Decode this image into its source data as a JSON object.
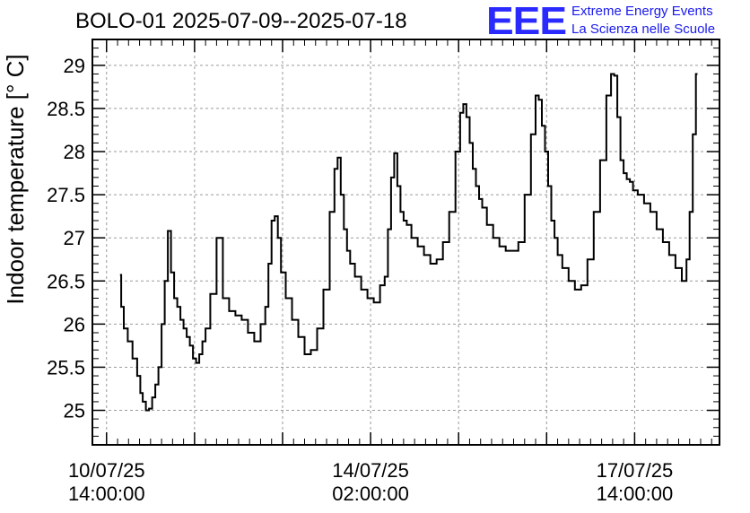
{
  "title": "BOLO-01 2025-07-09--2025-07-18",
  "logo": {
    "mark": "EEE",
    "line1": "Extreme Energy Events",
    "line2": "La Scienza nelle Scuole"
  },
  "chart_data": {
    "type": "line",
    "title": "BOLO-01 2025-07-09--2025-07-18",
    "xlabel": "",
    "ylabel": "Indoor temperature [° C]",
    "x_unit": "hours since 10/07/25 14:00:00",
    "xlim": [
      -4.5,
      195
    ],
    "ylim": [
      24.6,
      29.3
    ],
    "grid": true,
    "yticks": [
      25,
      25.5,
      26,
      26.5,
      27,
      27.5,
      28,
      28.5,
      29
    ],
    "ytick_labels": [
      "25",
      "25.5",
      "26",
      "26.5",
      "27",
      "27.5",
      "28",
      "28.5",
      "29"
    ],
    "xticks": [
      {
        "x": 0,
        "label_date": "10/07/25",
        "label_time": "14:00:00"
      },
      {
        "x": 84,
        "label_date": "14/07/25",
        "label_time": "02:00:00"
      },
      {
        "x": 168,
        "label_date": "17/07/25",
        "label_time": "14:00:00"
      }
    ],
    "series": [
      {
        "name": "",
        "color": "#000000",
        "x": [
          4.3,
          5,
          6,
          7.5,
          9,
          10.5,
          11,
          12,
          13,
          14,
          15,
          16,
          17,
          18,
          19,
          20,
          21,
          22,
          23,
          24,
          25,
          26,
          27,
          28,
          29,
          30,
          31,
          32,
          34,
          36,
          38,
          40,
          42,
          44,
          46,
          48,
          50,
          51,
          52,
          53,
          54,
          55,
          56,
          58,
          60,
          62,
          64,
          66,
          68,
          70,
          72,
          73,
          74,
          75,
          76,
          77,
          78,
          80,
          82,
          84,
          86,
          88,
          89,
          90,
          91,
          92,
          93,
          94,
          95,
          96,
          98,
          100,
          102,
          104,
          106,
          108,
          110,
          112,
          113,
          114,
          115,
          116,
          117,
          118,
          119,
          120,
          122,
          124,
          126,
          128,
          130,
          132,
          134,
          136,
          137,
          138,
          139,
          140,
          141,
          142,
          143,
          144,
          146,
          148,
          150,
          152,
          154,
          156,
          158,
          160,
          161,
          162,
          163,
          164,
          165,
          166,
          167,
          168,
          170,
          172,
          174,
          176,
          178,
          180,
          182,
          184,
          185,
          186,
          187,
          188
        ],
        "y": [
          26.57,
          26.2,
          25.95,
          25.8,
          25.6,
          25.4,
          25.2,
          25.1,
          25.0,
          25.02,
          25.15,
          25.3,
          25.5,
          26.0,
          26.5,
          27.08,
          26.6,
          26.3,
          26.2,
          26.05,
          25.95,
          25.85,
          25.75,
          25.6,
          25.55,
          25.65,
          25.8,
          25.95,
          26.35,
          27.0,
          26.3,
          26.15,
          26.1,
          26.05,
          25.9,
          25.8,
          26.0,
          26.2,
          26.7,
          27.2,
          27.25,
          27.0,
          26.6,
          26.3,
          26.05,
          25.85,
          25.65,
          25.7,
          25.95,
          26.4,
          27.3,
          27.8,
          27.93,
          27.5,
          27.1,
          26.85,
          26.7,
          26.55,
          26.4,
          26.3,
          26.25,
          26.45,
          26.55,
          27.1,
          27.7,
          27.98,
          27.6,
          27.3,
          27.2,
          27.15,
          27.0,
          26.9,
          26.8,
          26.7,
          26.75,
          26.95,
          27.3,
          28.0,
          28.45,
          28.55,
          28.4,
          28.1,
          27.8,
          27.6,
          27.45,
          27.35,
          27.15,
          27.0,
          26.9,
          26.85,
          26.85,
          26.95,
          27.5,
          28.2,
          28.65,
          28.6,
          28.3,
          28.0,
          27.6,
          27.2,
          27.0,
          26.8,
          26.65,
          26.5,
          26.4,
          26.45,
          26.75,
          27.3,
          27.9,
          28.65,
          28.9,
          28.88,
          28.4,
          27.9,
          27.75,
          27.68,
          27.65,
          27.55,
          27.5,
          27.4,
          27.3,
          27.1,
          26.95,
          26.8,
          26.65,
          26.5,
          26.75,
          27.3,
          28.2,
          28.9
        ]
      }
    ]
  }
}
